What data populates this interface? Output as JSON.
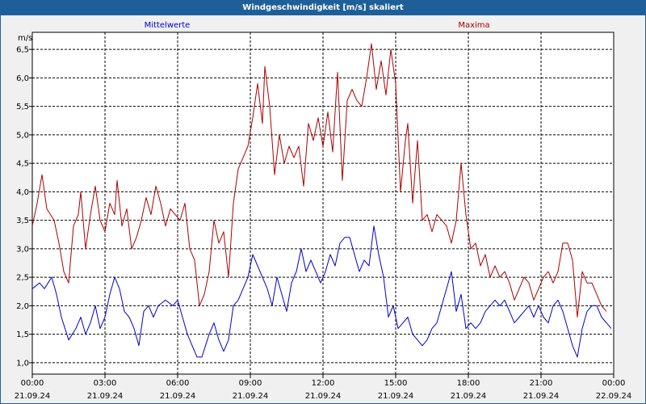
{
  "window": {
    "title": "Windgeschwindigkeit [m/s] skaliert"
  },
  "chart_data": {
    "type": "line",
    "unit_label": "m/s",
    "ylim": [
      0.8,
      6.8
    ],
    "yticks": [
      1.0,
      1.5,
      2.0,
      2.5,
      3.0,
      3.5,
      4.0,
      4.5,
      5.0,
      5.5,
      6.0,
      6.5
    ],
    "ytick_labels": [
      "1,0",
      "1,5",
      "2,0",
      "2,5",
      "3,0",
      "3,5",
      "4,0",
      "4,5",
      "5,0",
      "5,5",
      "6,0",
      "6,5"
    ],
    "xlim": [
      0,
      24
    ],
    "xticks": [
      {
        "hour": 0,
        "time": "00:00",
        "date": "21.09.24"
      },
      {
        "hour": 3,
        "time": "03:00",
        "date": "21.09.24"
      },
      {
        "hour": 6,
        "time": "06:00",
        "date": "21.09.24"
      },
      {
        "hour": 9,
        "time": "09:00",
        "date": "21.09.24"
      },
      {
        "hour": 12,
        "time": "12:00",
        "date": "21.09.24"
      },
      {
        "hour": 15,
        "time": "15:00",
        "date": "21.09.24"
      },
      {
        "hour": 18,
        "time": "18:00",
        "date": "21.09.24"
      },
      {
        "hour": 21,
        "time": "21:00",
        "date": "21.09.24"
      },
      {
        "hour": 24,
        "time": "00:00",
        "date": "22.09.24"
      }
    ],
    "grid": true,
    "series": [
      {
        "name": "Mittelwerte",
        "color": "#0000cc",
        "points": [
          [
            0,
            2.3
          ],
          [
            0.3,
            2.4
          ],
          [
            0.5,
            2.3
          ],
          [
            0.8,
            2.5
          ],
          [
            1.0,
            2.2
          ],
          [
            1.2,
            1.8
          ],
          [
            1.5,
            1.4
          ],
          [
            1.8,
            1.6
          ],
          [
            2.0,
            1.8
          ],
          [
            2.2,
            1.5
          ],
          [
            2.4,
            1.7
          ],
          [
            2.6,
            2.0
          ],
          [
            2.8,
            1.6
          ],
          [
            3.0,
            1.8
          ],
          [
            3.2,
            2.2
          ],
          [
            3.4,
            2.5
          ],
          [
            3.6,
            2.3
          ],
          [
            3.8,
            1.9
          ],
          [
            4.0,
            1.8
          ],
          [
            4.2,
            1.6
          ],
          [
            4.4,
            1.3
          ],
          [
            4.6,
            1.9
          ],
          [
            4.8,
            2.0
          ],
          [
            5.0,
            1.8
          ],
          [
            5.2,
            2.0
          ],
          [
            5.5,
            2.1
          ],
          [
            5.8,
            2.0
          ],
          [
            6.0,
            2.1
          ],
          [
            6.2,
            1.8
          ],
          [
            6.4,
            1.5
          ],
          [
            6.6,
            1.3
          ],
          [
            6.8,
            1.1
          ],
          [
            7.0,
            1.1
          ],
          [
            7.3,
            1.5
          ],
          [
            7.5,
            1.7
          ],
          [
            7.7,
            1.4
          ],
          [
            7.9,
            1.2
          ],
          [
            8.1,
            1.4
          ],
          [
            8.3,
            2.0
          ],
          [
            8.5,
            2.1
          ],
          [
            8.7,
            2.3
          ],
          [
            8.9,
            2.5
          ],
          [
            9.1,
            2.9
          ],
          [
            9.3,
            2.7
          ],
          [
            9.5,
            2.5
          ],
          [
            9.7,
            2.3
          ],
          [
            9.9,
            2.0
          ],
          [
            10.1,
            2.5
          ],
          [
            10.3,
            2.2
          ],
          [
            10.5,
            1.9
          ],
          [
            10.7,
            2.4
          ],
          [
            10.9,
            2.6
          ],
          [
            11.1,
            3.0
          ],
          [
            11.3,
            2.6
          ],
          [
            11.5,
            2.8
          ],
          [
            11.7,
            2.6
          ],
          [
            11.9,
            2.4
          ],
          [
            12.1,
            2.6
          ],
          [
            12.3,
            2.9
          ],
          [
            12.5,
            2.7
          ],
          [
            12.7,
            3.1
          ],
          [
            12.9,
            3.2
          ],
          [
            13.1,
            3.2
          ],
          [
            13.3,
            2.9
          ],
          [
            13.5,
            2.6
          ],
          [
            13.7,
            2.8
          ],
          [
            13.9,
            2.7
          ],
          [
            14.1,
            3.4
          ],
          [
            14.3,
            2.9
          ],
          [
            14.5,
            2.5
          ],
          [
            14.7,
            1.8
          ],
          [
            14.9,
            2.0
          ],
          [
            15.1,
            1.6
          ],
          [
            15.3,
            1.7
          ],
          [
            15.5,
            1.8
          ],
          [
            15.7,
            1.5
          ],
          [
            15.9,
            1.4
          ],
          [
            16.1,
            1.3
          ],
          [
            16.3,
            1.4
          ],
          [
            16.5,
            1.6
          ],
          [
            16.7,
            1.7
          ],
          [
            16.9,
            2.0
          ],
          [
            17.1,
            2.3
          ],
          [
            17.3,
            2.6
          ],
          [
            17.5,
            1.9
          ],
          [
            17.7,
            2.2
          ],
          [
            17.9,
            1.6
          ],
          [
            18.1,
            1.7
          ],
          [
            18.3,
            1.6
          ],
          [
            18.5,
            1.7
          ],
          [
            18.7,
            1.9
          ],
          [
            18.9,
            2.0
          ],
          [
            19.1,
            2.1
          ],
          [
            19.3,
            2.0
          ],
          [
            19.5,
            2.1
          ],
          [
            19.7,
            1.9
          ],
          [
            19.9,
            1.7
          ],
          [
            20.1,
            1.8
          ],
          [
            20.3,
            1.9
          ],
          [
            20.5,
            2.0
          ],
          [
            20.7,
            1.8
          ],
          [
            20.9,
            2.0
          ],
          [
            21.1,
            1.8
          ],
          [
            21.3,
            1.7
          ],
          [
            21.5,
            2.0
          ],
          [
            21.7,
            2.1
          ],
          [
            21.9,
            1.9
          ],
          [
            22.1,
            1.6
          ],
          [
            22.3,
            1.3
          ],
          [
            22.5,
            1.1
          ],
          [
            22.7,
            1.6
          ],
          [
            22.9,
            1.9
          ],
          [
            23.1,
            2.0
          ],
          [
            23.3,
            2.0
          ],
          [
            23.5,
            1.8
          ],
          [
            23.7,
            1.7
          ],
          [
            23.9,
            1.6
          ]
        ]
      },
      {
        "name": "Maxima",
        "color": "#aa0000",
        "points": [
          [
            0,
            3.4
          ],
          [
            0.2,
            3.8
          ],
          [
            0.4,
            4.3
          ],
          [
            0.6,
            3.7
          ],
          [
            0.9,
            3.5
          ],
          [
            1.1,
            3.1
          ],
          [
            1.3,
            2.6
          ],
          [
            1.5,
            2.4
          ],
          [
            1.7,
            3.4
          ],
          [
            1.9,
            3.6
          ],
          [
            2.0,
            4.0
          ],
          [
            2.2,
            3.0
          ],
          [
            2.4,
            3.6
          ],
          [
            2.6,
            4.1
          ],
          [
            2.8,
            3.5
          ],
          [
            3.0,
            3.3
          ],
          [
            3.2,
            3.8
          ],
          [
            3.4,
            3.6
          ],
          [
            3.5,
            4.2
          ],
          [
            3.7,
            3.4
          ],
          [
            3.9,
            3.7
          ],
          [
            4.1,
            3.0
          ],
          [
            4.3,
            3.2
          ],
          [
            4.5,
            3.5
          ],
          [
            4.7,
            3.9
          ],
          [
            4.9,
            3.6
          ],
          [
            5.1,
            4.1
          ],
          [
            5.3,
            3.8
          ],
          [
            5.5,
            3.4
          ],
          [
            5.7,
            3.7
          ],
          [
            5.9,
            3.6
          ],
          [
            6.1,
            3.5
          ],
          [
            6.3,
            3.8
          ],
          [
            6.5,
            3.0
          ],
          [
            6.7,
            2.8
          ],
          [
            6.9,
            2.0
          ],
          [
            7.1,
            2.2
          ],
          [
            7.3,
            2.6
          ],
          [
            7.5,
            3.5
          ],
          [
            7.7,
            3.1
          ],
          [
            7.9,
            3.3
          ],
          [
            8.1,
            2.5
          ],
          [
            8.3,
            3.8
          ],
          [
            8.5,
            4.4
          ],
          [
            8.7,
            4.6
          ],
          [
            8.9,
            4.8
          ],
          [
            9.1,
            5.3
          ],
          [
            9.3,
            5.9
          ],
          [
            9.5,
            5.2
          ],
          [
            9.6,
            6.2
          ],
          [
            9.8,
            5.5
          ],
          [
            10.0,
            4.3
          ],
          [
            10.2,
            5.0
          ],
          [
            10.4,
            4.5
          ],
          [
            10.6,
            4.8
          ],
          [
            10.8,
            4.6
          ],
          [
            11.0,
            4.8
          ],
          [
            11.2,
            4.1
          ],
          [
            11.4,
            5.2
          ],
          [
            11.6,
            4.9
          ],
          [
            11.8,
            5.3
          ],
          [
            12.0,
            4.8
          ],
          [
            12.2,
            5.4
          ],
          [
            12.4,
            4.7
          ],
          [
            12.6,
            6.1
          ],
          [
            12.8,
            4.2
          ],
          [
            13.0,
            5.6
          ],
          [
            13.2,
            5.8
          ],
          [
            13.4,
            5.6
          ],
          [
            13.6,
            5.5
          ],
          [
            13.8,
            6.0
          ],
          [
            14.0,
            6.6
          ],
          [
            14.2,
            5.8
          ],
          [
            14.4,
            6.3
          ],
          [
            14.6,
            5.7
          ],
          [
            14.8,
            6.5
          ],
          [
            15.0,
            5.9
          ],
          [
            15.2,
            4.0
          ],
          [
            15.4,
            4.9
          ],
          [
            15.5,
            5.2
          ],
          [
            15.7,
            3.8
          ],
          [
            15.9,
            4.9
          ],
          [
            16.1,
            3.5
          ],
          [
            16.3,
            3.6
          ],
          [
            16.5,
            3.3
          ],
          [
            16.7,
            3.6
          ],
          [
            16.9,
            3.5
          ],
          [
            17.1,
            3.4
          ],
          [
            17.3,
            3.1
          ],
          [
            17.5,
            3.5
          ],
          [
            17.7,
            4.5
          ],
          [
            17.9,
            3.6
          ],
          [
            18.1,
            3.0
          ],
          [
            18.3,
            3.1
          ],
          [
            18.5,
            2.7
          ],
          [
            18.7,
            2.9
          ],
          [
            18.9,
            2.5
          ],
          [
            19.1,
            2.7
          ],
          [
            19.3,
            2.5
          ],
          [
            19.5,
            2.6
          ],
          [
            19.7,
            2.4
          ],
          [
            19.9,
            2.1
          ],
          [
            20.1,
            2.3
          ],
          [
            20.3,
            2.5
          ],
          [
            20.5,
            2.4
          ],
          [
            20.7,
            2.1
          ],
          [
            20.9,
            2.3
          ],
          [
            21.1,
            2.5
          ],
          [
            21.3,
            2.6
          ],
          [
            21.5,
            2.4
          ],
          [
            21.7,
            2.6
          ],
          [
            21.9,
            3.1
          ],
          [
            22.1,
            3.1
          ],
          [
            22.3,
            2.8
          ],
          [
            22.5,
            1.8
          ],
          [
            22.7,
            2.6
          ],
          [
            22.9,
            2.4
          ],
          [
            23.1,
            2.4
          ],
          [
            23.3,
            2.2
          ],
          [
            23.5,
            2.0
          ],
          [
            23.7,
            1.9
          ]
        ]
      }
    ]
  }
}
